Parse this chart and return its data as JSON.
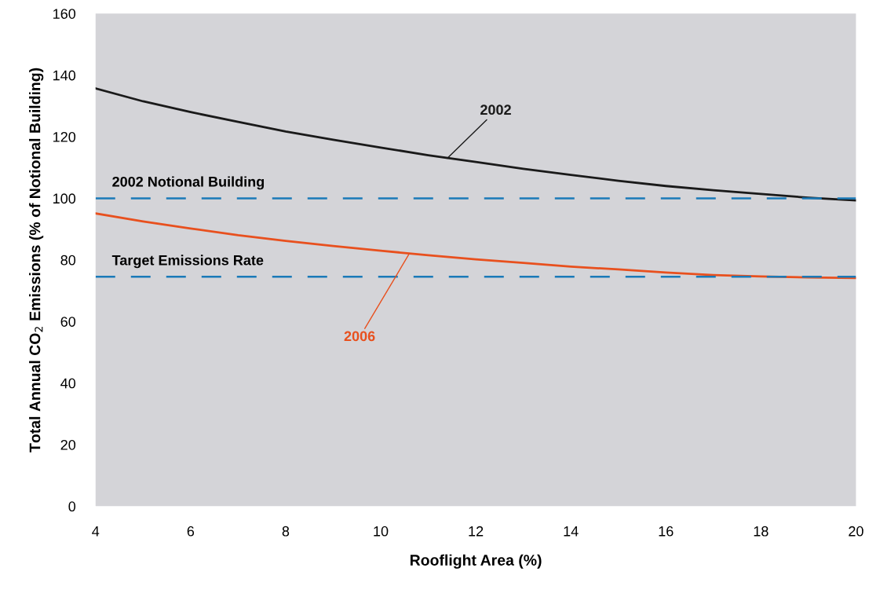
{
  "chart_data": {
    "type": "line",
    "xlabel": "Rooflight Area (%)",
    "ylabel": "Total Annual CO$_{2}$ Emissions (% of Notional Building)",
    "x": [
      4,
      5,
      6,
      7,
      8,
      9,
      10,
      11,
      12,
      13,
      14,
      15,
      16,
      17,
      18,
      19,
      20
    ],
    "series": [
      {
        "color": "#1a1a1a",
        "values": [
          135.7,
          131.5,
          128,
          124.8,
          121.7,
          119,
          116.5,
          114,
          111.8,
          109.6,
          107.6,
          105.7,
          104,
          102.6,
          101.4,
          100.2,
          99.3
        ]
      },
      {
        "color": "#e8501e",
        "values": [
          95.1,
          92.5,
          90.2,
          88,
          86.2,
          84.5,
          83,
          81.5,
          80.2,
          79,
          77.8,
          76.9,
          75.9,
          75.1,
          74.6,
          74.3,
          74.1
        ]
      }
    ],
    "ref_lines": [
      {
        "axis": "y",
        "value": 100,
        "label": "2002 Notional Building",
        "color": "#1a7ab8",
        "line_style": "dashed"
      },
      {
        "axis": "y",
        "value": 74.5,
        "label": "Target Emissions Rate",
        "color": "#1a7ab8",
        "line_style": "dashed"
      }
    ],
    "annotations": [
      {
        "text": "2002",
        "x": 11.4,
        "y": 113
      },
      {
        "text": "2006",
        "x": 10.6,
        "y": 82
      }
    ],
    "xlim": [
      4,
      20
    ],
    "ylim": [
      0,
      160
    ],
    "xticks": [
      4,
      6,
      8,
      10,
      12,
      14,
      16,
      18,
      20
    ],
    "yticks": [
      0,
      20,
      40,
      60,
      80,
      100,
      120,
      140,
      160
    ],
    "grid": false,
    "legend": false,
    "marker": "none",
    "line_style": "solid"
  }
}
